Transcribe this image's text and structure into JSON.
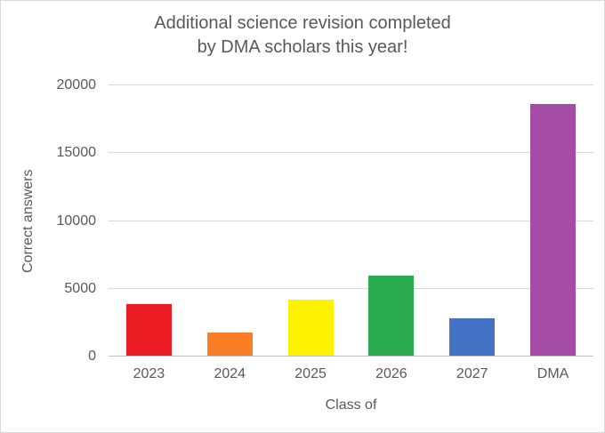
{
  "chart": {
    "title_line1": "Additional science revision completed",
    "title_line2": "by DMA scholars this year!",
    "ylabel": "Correct answers",
    "xlabel": "Class of"
  },
  "chart_data": {
    "type": "bar",
    "title": "Additional science revision completed by DMA scholars this year!",
    "xlabel": "Class of",
    "ylabel": "Correct answers",
    "categories": [
      "2023",
      "2024",
      "2025",
      "2026",
      "2027",
      "DMA"
    ],
    "values": [
      3900,
      1750,
      4200,
      6000,
      2800,
      18600
    ],
    "bar_colors": [
      "#ec1c24",
      "#fb7d27",
      "#fef200",
      "#2bac51",
      "#4472c4",
      "#a44ca6"
    ],
    "ylim": [
      0,
      20000
    ],
    "yticks": [
      0,
      5000,
      10000,
      15000,
      20000
    ],
    "grid": "horizontal",
    "legend": "none"
  },
  "colors": {
    "text": "#595959",
    "gridline": "#d9d9d9",
    "axis_line": "#bfbfbf",
    "background": "#ffffff",
    "border": "#d9d9d9"
  }
}
